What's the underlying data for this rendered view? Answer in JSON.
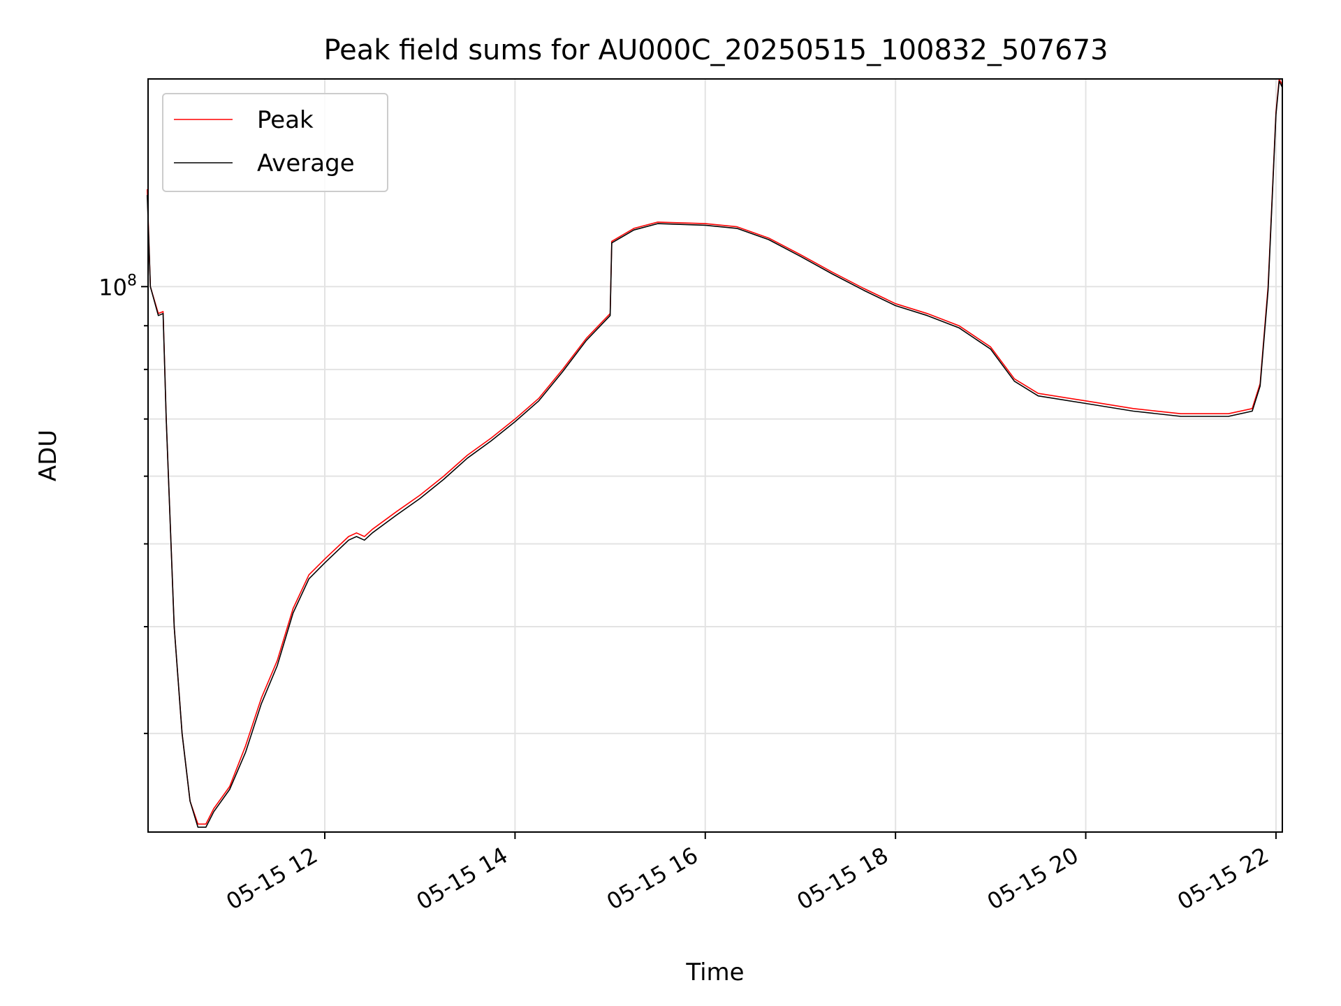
{
  "chart_data": {
    "type": "line",
    "title": "Peak field sums for AU000C_20250515_100832_507673",
    "xlabel": "Time",
    "ylabel": "ADU",
    "y_scale": "log",
    "ylim": [
      23000000,
      175000000
    ],
    "xlim": [
      "2025-05-15 10:08:32",
      "2025-05-15 22:04:00"
    ],
    "grid": true,
    "legend_position": "top-left",
    "x_ticks": [
      {
        "x": "2025-05-15 12:00",
        "label": "05-15 12"
      },
      {
        "x": "2025-05-15 14:00",
        "label": "05-15 14"
      },
      {
        "x": "2025-05-15 16:00",
        "label": "05-15 16"
      },
      {
        "x": "2025-05-15 18:00",
        "label": "05-15 18"
      },
      {
        "x": "2025-05-15 20:00",
        "label": "05-15 20"
      },
      {
        "x": "2025-05-15 22:00",
        "label": "05-15 22"
      }
    ],
    "y_major_ticks": [
      {
        "y": 100000000,
        "label_base": "10",
        "label_exp": "8"
      }
    ],
    "y_minor_ticks": [
      30000000,
      40000000,
      50000000,
      60000000,
      70000000,
      80000000,
      90000000
    ],
    "series": [
      {
        "name": "Peak",
        "color": "#ff0000",
        "x": [
          "2025-05-15 10:08",
          "2025-05-15 10:10",
          "2025-05-15 10:15",
          "2025-05-15 10:18",
          "2025-05-15 10:20",
          "2025-05-15 10:25",
          "2025-05-15 10:30",
          "2025-05-15 10:35",
          "2025-05-15 10:40",
          "2025-05-15 10:45",
          "2025-05-15 10:50",
          "2025-05-15 11:00",
          "2025-05-15 11:10",
          "2025-05-15 11:20",
          "2025-05-15 11:30",
          "2025-05-15 11:40",
          "2025-05-15 11:50",
          "2025-05-15 12:00",
          "2025-05-15 12:15",
          "2025-05-15 12:20",
          "2025-05-15 12:25",
          "2025-05-15 12:30",
          "2025-05-15 12:45",
          "2025-05-15 13:00",
          "2025-05-15 13:15",
          "2025-05-15 13:30",
          "2025-05-15 13:45",
          "2025-05-15 14:00",
          "2025-05-15 14:15",
          "2025-05-15 14:30",
          "2025-05-15 14:45",
          "2025-05-15 15:00",
          "2025-05-15 15:01",
          "2025-05-15 15:15",
          "2025-05-15 15:30",
          "2025-05-15 16:00",
          "2025-05-15 16:20",
          "2025-05-15 16:40",
          "2025-05-15 17:00",
          "2025-05-15 17:20",
          "2025-05-15 17:40",
          "2025-05-15 18:00",
          "2025-05-15 18:20",
          "2025-05-15 18:40",
          "2025-05-15 19:00",
          "2025-05-15 19:15",
          "2025-05-15 19:30",
          "2025-05-15 20:00",
          "2025-05-15 20:30",
          "2025-05-15 21:00",
          "2025-05-15 21:30",
          "2025-05-15 21:45",
          "2025-05-15 21:50",
          "2025-05-15 21:55",
          "2025-05-15 22:00",
          "2025-05-15 22:02",
          "2025-05-15 22:04"
        ],
        "values": [
          130000000,
          100000000,
          93000000,
          93500000,
          70000000,
          40000000,
          30000000,
          25000000,
          23500000,
          23500000,
          24500000,
          26000000,
          29000000,
          33000000,
          36500000,
          42000000,
          46000000,
          48000000,
          51000000,
          51500000,
          51000000,
          52000000,
          54500000,
          57000000,
          60000000,
          63500000,
          66500000,
          70000000,
          74000000,
          80000000,
          87000000,
          93000000,
          113000000,
          117000000,
          119000000,
          118500000,
          117500000,
          114000000,
          109000000,
          104000000,
          99500000,
          95500000,
          93000000,
          90000000,
          85000000,
          78000000,
          75000000,
          73500000,
          72000000,
          71000000,
          71000000,
          72000000,
          77000000,
          100000000,
          160000000,
          175000000,
          172000000
        ]
      },
      {
        "name": "Average",
        "color": "#000000",
        "x": [
          "2025-05-15 10:08",
          "2025-05-15 10:10",
          "2025-05-15 10:15",
          "2025-05-15 10:18",
          "2025-05-15 10:20",
          "2025-05-15 10:25",
          "2025-05-15 10:30",
          "2025-05-15 10:35",
          "2025-05-15 10:40",
          "2025-05-15 10:45",
          "2025-05-15 10:50",
          "2025-05-15 11:00",
          "2025-05-15 11:10",
          "2025-05-15 11:20",
          "2025-05-15 11:30",
          "2025-05-15 11:40",
          "2025-05-15 11:50",
          "2025-05-15 12:00",
          "2025-05-15 12:15",
          "2025-05-15 12:20",
          "2025-05-15 12:25",
          "2025-05-15 12:30",
          "2025-05-15 12:45",
          "2025-05-15 13:00",
          "2025-05-15 13:15",
          "2025-05-15 13:30",
          "2025-05-15 13:45",
          "2025-05-15 14:00",
          "2025-05-15 14:15",
          "2025-05-15 14:30",
          "2025-05-15 14:45",
          "2025-05-15 15:00",
          "2025-05-15 15:01",
          "2025-05-15 15:15",
          "2025-05-15 15:30",
          "2025-05-15 16:00",
          "2025-05-15 16:20",
          "2025-05-15 16:40",
          "2025-05-15 17:00",
          "2025-05-15 17:20",
          "2025-05-15 17:40",
          "2025-05-15 18:00",
          "2025-05-15 18:20",
          "2025-05-15 18:40",
          "2025-05-15 19:00",
          "2025-05-15 19:15",
          "2025-05-15 19:30",
          "2025-05-15 20:00",
          "2025-05-15 20:30",
          "2025-05-15 21:00",
          "2025-05-15 21:30",
          "2025-05-15 21:45",
          "2025-05-15 21:50",
          "2025-05-15 21:55",
          "2025-05-15 22:00",
          "2025-05-15 22:02",
          "2025-05-15 22:04"
        ],
        "values": [
          128000000,
          100000000,
          92500000,
          93000000,
          70000000,
          40000000,
          30000000,
          25000000,
          23300000,
          23300000,
          24300000,
          25800000,
          28500000,
          32500000,
          36000000,
          41500000,
          45500000,
          47500000,
          50500000,
          51000000,
          50500000,
          51500000,
          54000000,
          56500000,
          59500000,
          63000000,
          66000000,
          69500000,
          73500000,
          79500000,
          86500000,
          92500000,
          112500000,
          116500000,
          118500000,
          118000000,
          117000000,
          113500000,
          108500000,
          103500000,
          99000000,
          95000000,
          92500000,
          89500000,
          84500000,
          77500000,
          74500000,
          73000000,
          71500000,
          70500000,
          70500000,
          71500000,
          76500000,
          99000000,
          159000000,
          174000000,
          171000000
        ]
      }
    ]
  }
}
